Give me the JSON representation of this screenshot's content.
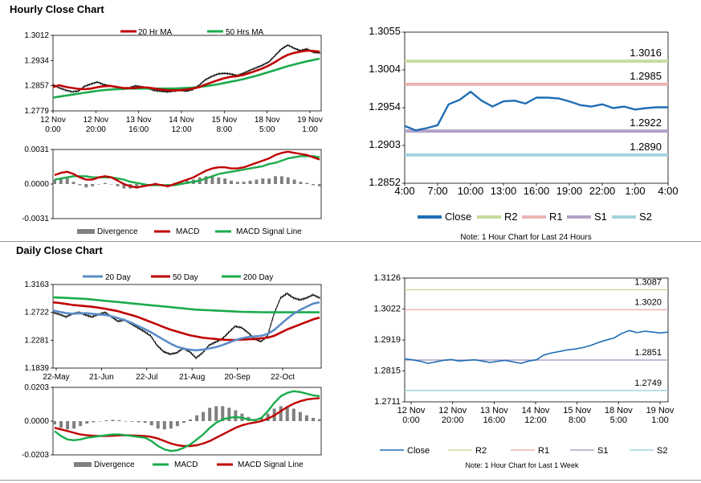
{
  "sections": {
    "hourly_title": "Hourly Close Chart",
    "daily_title": "Daily Close Chart"
  },
  "colors": {
    "red": "#c00000",
    "green": "#1aab4b",
    "blue": "#1f6eb5",
    "steel": "#5b8cc6",
    "gray": "#808080",
    "r2": "#c6dca0",
    "r1": "#eab5b3",
    "s1": "#b3a2c7",
    "s2": "#a3d3df"
  },
  "chart_data": [
    {
      "id": "hourly_price",
      "type": "line",
      "ylim": [
        1.2779,
        1.3012
      ],
      "yticks": [
        "1.3012",
        "1.2934",
        "1.2857",
        "1.2779"
      ],
      "xticks": [
        [
          "12 Nov",
          "0:00"
        ],
        [
          "12 Nov",
          "20:00"
        ],
        [
          "13 Nov",
          "16:00"
        ],
        [
          "14 Nov",
          "12:00"
        ],
        [
          "15 Nov",
          "8:00"
        ],
        [
          "18 Nov",
          "5:00"
        ],
        [
          "19 Nov",
          "1:00"
        ]
      ],
      "legend": [
        "20 Hr MA",
        "50 Hrs MA"
      ],
      "price": [
        1.286,
        1.285,
        1.2843,
        1.2838,
        1.284,
        1.2855,
        1.2862,
        1.2868,
        1.286,
        1.2856,
        1.2852,
        1.2847,
        1.285,
        1.2856,
        1.2853,
        1.2848,
        1.2842,
        1.284,
        1.2838,
        1.284,
        1.2843,
        1.284,
        1.2845,
        1.2858,
        1.2875,
        1.2885,
        1.2893,
        1.2895,
        1.2893,
        1.2888,
        1.2895,
        1.2904,
        1.2912,
        1.292,
        1.293,
        1.295,
        1.297,
        1.2982,
        1.2972,
        1.2965,
        1.297,
        1.296,
        1.2958
      ],
      "ma20": [
        1.2853,
        1.2858,
        1.2853,
        1.285,
        1.2847,
        1.2846,
        1.2848,
        1.2852,
        1.2855,
        1.2856,
        1.2853,
        1.285,
        1.2849,
        1.285,
        1.2852,
        1.2851,
        1.2848,
        1.2845,
        1.2843,
        1.2842,
        1.2843,
        1.2845,
        1.2848,
        1.2852,
        1.286,
        1.2867,
        1.2874,
        1.288,
        1.2884,
        1.2886,
        1.289,
        1.2896,
        1.2903,
        1.291,
        1.2919,
        1.293,
        1.2942,
        1.2952,
        1.2958,
        1.2962,
        1.2965,
        1.2964,
        1.2962
      ],
      "ma50": [
        1.282,
        1.2823,
        1.2826,
        1.2829,
        1.2832,
        1.2835,
        1.2838,
        1.2841,
        1.2843,
        1.2845,
        1.2846,
        1.2847,
        1.2848,
        1.2848,
        1.2848,
        1.2848,
        1.2848,
        1.2848,
        1.2848,
        1.2848,
        1.2849,
        1.285,
        1.2851,
        1.2853,
        1.2855,
        1.2858,
        1.2861,
        1.2865,
        1.2869,
        1.2873,
        1.2877,
        1.2882,
        1.2887,
        1.2893,
        1.2899,
        1.2905,
        1.2911,
        1.2917,
        1.2922,
        1.2927,
        1.2932,
        1.2936,
        1.294
      ]
    },
    {
      "id": "hourly_macd",
      "type": "line",
      "ylim": [
        -0.0031,
        0.0031
      ],
      "yticks": [
        "0.0031",
        "0.0000",
        "-0.0031"
      ],
      "legend": [
        "Divergence",
        "MACD",
        "MACD Signal Line"
      ],
      "macd": [
        0.0008,
        0.001,
        0.0011,
        0.0009,
        0.0006,
        0.0004,
        0.0004,
        0.0006,
        0.0007,
        0.0006,
        0.0003,
        0.0,
        -0.0002,
        -0.0003,
        -0.0002,
        -0.0001,
        0.0,
        -0.0001,
        -0.0002,
        0.0,
        0.0002,
        0.0004,
        0.0006,
        0.0009,
        0.0012,
        0.0014,
        0.0015,
        0.0015,
        0.0014,
        0.0014,
        0.0015,
        0.0017,
        0.0019,
        0.0021,
        0.0023,
        0.0026,
        0.0028,
        0.0029,
        0.0028,
        0.0027,
        0.0026,
        0.0024,
        0.0022
      ],
      "signal": [
        0.0004,
        0.0005,
        0.0006,
        0.0007,
        0.0007,
        0.0007,
        0.0006,
        0.0006,
        0.0006,
        0.0006,
        0.0005,
        0.0004,
        0.0002,
        0.0001,
        0.0,
        -0.0001,
        -0.0001,
        -0.0001,
        -0.0001,
        -0.0001,
        0.0,
        0.0001,
        0.0002,
        0.0003,
        0.0005,
        0.0007,
        0.0009,
        0.001,
        0.0011,
        0.0012,
        0.0013,
        0.0014,
        0.0015,
        0.0016,
        0.0018,
        0.0019,
        0.0021,
        0.0023,
        0.0024,
        0.0025,
        0.0025,
        0.0025,
        0.0024
      ]
    },
    {
      "id": "hourly_pivot",
      "type": "line",
      "ylim": [
        1.2852,
        1.3055
      ],
      "yticks": [
        "1.3055",
        "1.3004",
        "1.2954",
        "1.2903",
        "1.2852"
      ],
      "xticks": [
        "4:00",
        "7:00",
        "10:00",
        "13:00",
        "16:00",
        "19:00",
        "22:00",
        "1:00",
        "4:00"
      ],
      "legend": [
        "Close",
        "R2",
        "R1",
        "S1",
        "S2"
      ],
      "levels": {
        "R2": 1.3016,
        "R1": 1.2985,
        "S1": 1.2922,
        "S2": 1.289
      },
      "level_labels": {
        "R2": "1.3016",
        "R1": "1.2985",
        "S1": "1.2922",
        "S2": "1.2890"
      },
      "close": [
        1.2929,
        1.2923,
        1.2926,
        1.293,
        1.2958,
        1.2964,
        1.2975,
        1.2963,
        1.2955,
        1.2962,
        1.2963,
        1.2959,
        1.2967,
        1.2967,
        1.2966,
        1.2962,
        1.2957,
        1.2955,
        1.2958,
        1.2953,
        1.2955,
        1.2951,
        1.2953,
        1.2954,
        1.2954
      ],
      "note": "Note: 1 Hour Chart for Last 24 Hours"
    },
    {
      "id": "daily_price",
      "type": "line",
      "ylim": [
        1.1839,
        1.3163
      ],
      "yticks": [
        "1.3163",
        "1.2722",
        "1.2281",
        "1.1839"
      ],
      "xticks": [
        "22-May",
        "21-Jun",
        "22-Jul",
        "21-Aug",
        "20-Sep",
        "22-Oct"
      ],
      "legend": [
        "20 Day",
        "50 Day",
        "200 Day"
      ],
      "price": [
        1.272,
        1.269,
        1.265,
        1.27,
        1.272,
        1.268,
        1.265,
        1.269,
        1.272,
        1.265,
        1.258,
        1.26,
        1.254,
        1.248,
        1.242,
        1.235,
        1.22,
        1.21,
        1.206,
        1.208,
        1.215,
        1.21,
        1.2,
        1.208,
        1.22,
        1.225,
        1.23,
        1.24,
        1.25,
        1.248,
        1.24,
        1.23,
        1.226,
        1.235,
        1.27,
        1.295,
        1.302,
        1.295,
        1.292,
        1.295,
        1.3,
        1.295
      ],
      "ma20": [
        1.275,
        1.273,
        1.271,
        1.27,
        1.2705,
        1.271,
        1.27,
        1.269,
        1.268,
        1.266,
        1.263,
        1.26,
        1.256,
        1.251,
        1.246,
        1.241,
        1.235,
        1.229,
        1.223,
        1.218,
        1.215,
        1.213,
        1.212,
        1.213,
        1.215,
        1.217,
        1.22,
        1.224,
        1.228,
        1.231,
        1.233,
        1.234,
        1.235,
        1.238,
        1.244,
        1.253,
        1.262,
        1.27,
        1.276,
        1.281,
        1.286,
        1.288
      ],
      "ma50": [
        1.288,
        1.287,
        1.2855,
        1.284,
        1.283,
        1.282,
        1.281,
        1.2795,
        1.278,
        1.276,
        1.274,
        1.271,
        1.268,
        1.265,
        1.261,
        1.257,
        1.253,
        1.249,
        1.245,
        1.242,
        1.239,
        1.236,
        1.234,
        1.232,
        1.231,
        1.23,
        1.229,
        1.2285,
        1.2285,
        1.229,
        1.2295,
        1.23,
        1.231,
        1.232,
        1.235,
        1.24,
        1.245,
        1.249,
        1.253,
        1.257,
        1.261,
        1.264
      ],
      "ma200": [
        1.296,
        1.2955,
        1.295,
        1.2945,
        1.294,
        1.2935,
        1.2925,
        1.2915,
        1.2905,
        1.2895,
        1.2885,
        1.2875,
        1.2865,
        1.2855,
        1.2845,
        1.2835,
        1.2825,
        1.2815,
        1.2805,
        1.2795,
        1.2785,
        1.2775,
        1.2765,
        1.276,
        1.2755,
        1.275,
        1.2745,
        1.274,
        1.2735,
        1.273,
        1.2728,
        1.2726,
        1.2724,
        1.2722,
        1.2722,
        1.2722,
        1.2722,
        1.2722,
        1.2722,
        1.2722,
        1.2722,
        1.2722
      ]
    },
    {
      "id": "daily_macd",
      "type": "line",
      "ylim": [
        -0.0203,
        0.0203
      ],
      "yticks": [
        "0.0203",
        "0.0000",
        "-0.0203"
      ],
      "legend": [
        "Divergence",
        "MACD",
        "MACD Signal Line"
      ],
      "macd": [
        -0.006,
        -0.009,
        -0.011,
        -0.0115,
        -0.011,
        -0.01,
        -0.0095,
        -0.009,
        -0.0085,
        -0.008,
        -0.008,
        -0.0085,
        -0.009,
        -0.0095,
        -0.01,
        -0.012,
        -0.015,
        -0.017,
        -0.018,
        -0.0175,
        -0.016,
        -0.014,
        -0.011,
        -0.008,
        -0.004,
        -0.001,
        0.001,
        0.002,
        0.0025,
        0.002,
        0.001,
        0.0005,
        0.002,
        0.006,
        0.011,
        0.015,
        0.017,
        0.018,
        0.0175,
        0.0165,
        0.0155,
        0.015
      ],
      "signal": [
        -0.004,
        -0.005,
        -0.006,
        -0.007,
        -0.008,
        -0.0085,
        -0.0088,
        -0.009,
        -0.009,
        -0.0088,
        -0.0086,
        -0.0085,
        -0.0086,
        -0.0088,
        -0.009,
        -0.0095,
        -0.0105,
        -0.012,
        -0.0135,
        -0.0145,
        -0.015,
        -0.015,
        -0.0145,
        -0.0135,
        -0.012,
        -0.01,
        -0.008,
        -0.006,
        -0.004,
        -0.0025,
        -0.0015,
        -0.0008,
        0.0,
        0.0015,
        0.0035,
        0.006,
        0.0085,
        0.0105,
        0.012,
        0.013,
        0.0135,
        0.0138
      ]
    },
    {
      "id": "daily_pivot",
      "type": "line",
      "ylim": [
        1.2711,
        1.3126
      ],
      "yticks": [
        "1.3126",
        "1.3022",
        "1.2919",
        "1.2815",
        "1.2711"
      ],
      "xticks": [
        [
          "12 Nov",
          "0:00"
        ],
        [
          "12 Nov",
          "20:00"
        ],
        [
          "13 Nov",
          "16:00"
        ],
        [
          "14 Nov",
          "12:00"
        ],
        [
          "15 Nov",
          "8:00"
        ],
        [
          "18 Nov",
          "5:00"
        ],
        [
          "19 Nov",
          "1:00"
        ]
      ],
      "legend": [
        "Close",
        "R2",
        "R1",
        "S1",
        "S2"
      ],
      "levels": {
        "R2": 1.3087,
        "R1": 1.302,
        "S1": 1.2851,
        "S2": 1.2749
      },
      "level_labels": {
        "R2": "1.3087",
        "R1": "1.3020",
        "S1": "1.2851",
        "S2": "1.2749"
      },
      "close": [
        1.2855,
        1.2852,
        1.2847,
        1.284,
        1.2845,
        1.285,
        1.2853,
        1.2848,
        1.285,
        1.2852,
        1.2848,
        1.2843,
        1.2847,
        1.285,
        1.2845,
        1.284,
        1.2848,
        1.2852,
        1.2868,
        1.2875,
        1.288,
        1.2885,
        1.2888,
        1.2893,
        1.29,
        1.291,
        1.2918,
        1.2925,
        1.294,
        1.295,
        1.2943,
        1.2948,
        1.2945,
        1.2942,
        1.2945
      ],
      "note": "Note: 1 Hour Chart for Last 1 Week"
    }
  ]
}
